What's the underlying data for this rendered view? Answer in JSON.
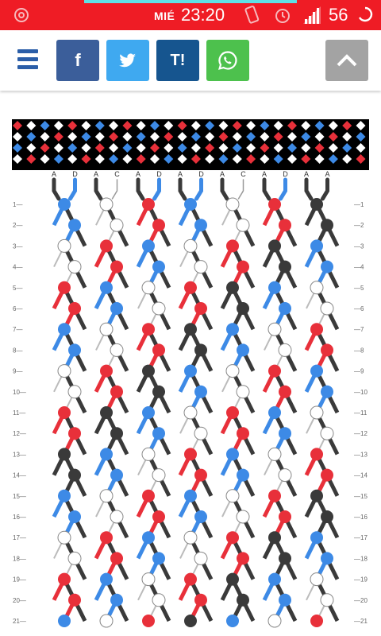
{
  "status_bar": {
    "day": "MIÉ",
    "time": "23:20",
    "battery": "56"
  },
  "toolbar": {
    "share_facebook": "f",
    "share_tumblr": "T!"
  },
  "pattern": {
    "strings": [
      "A",
      "D",
      "A",
      "C",
      "A",
      "D",
      "A",
      "D",
      "A",
      "C",
      "A",
      "D",
      "A",
      "A"
    ],
    "row_numbers": [
      "1",
      "2",
      "3",
      "4",
      "5",
      "6",
      "7",
      "8",
      "9",
      "10",
      "11",
      "12",
      "13",
      "14",
      "15",
      "16",
      "17",
      "18",
      "19",
      "20",
      "21"
    ],
    "colors": {
      "A": "#3a3a3a",
      "D": "#3d8ae6",
      "C": "#ffffff",
      "R": "#e8303a",
      "bar_bg": "#000000"
    }
  }
}
